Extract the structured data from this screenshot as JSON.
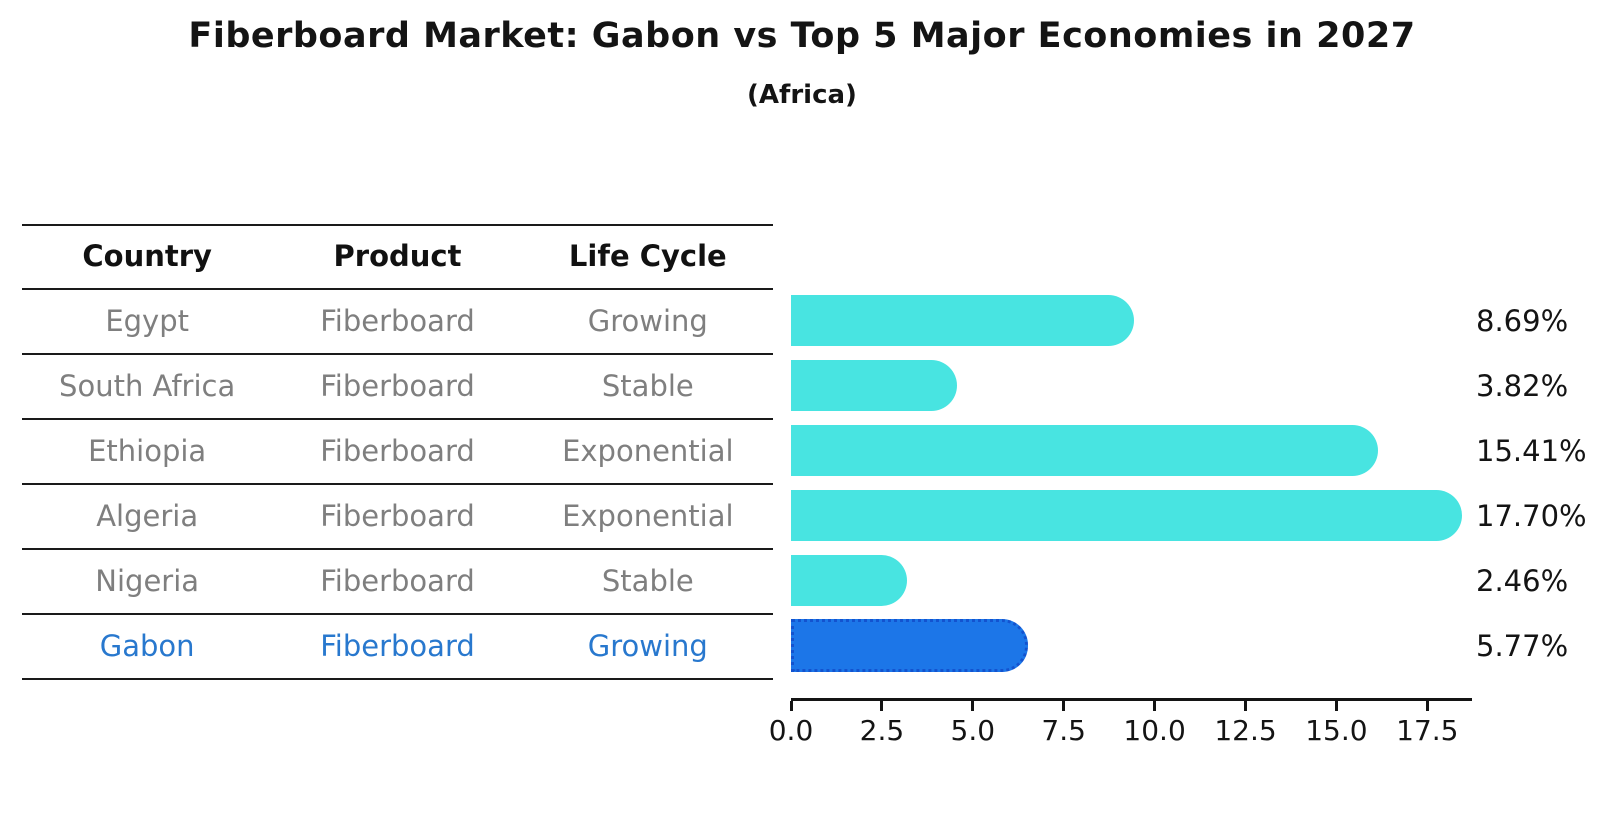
{
  "title": "Fiberboard Market: Gabon vs Top 5 Major Economies in 2027",
  "subtitle": "(Africa)",
  "table": {
    "headers": [
      "Country",
      "Product",
      "Life Cycle"
    ],
    "rows": [
      {
        "country": "Egypt",
        "product": "Fiberboard",
        "life_cycle": "Growing",
        "highlight": false
      },
      {
        "country": "South Africa",
        "product": "Fiberboard",
        "life_cycle": "Stable",
        "highlight": false
      },
      {
        "country": "Ethiopia",
        "product": "Fiberboard",
        "life_cycle": "Exponential",
        "highlight": false
      },
      {
        "country": "Algeria",
        "product": "Fiberboard",
        "life_cycle": "Exponential",
        "highlight": false
      },
      {
        "country": "Nigeria",
        "product": "Fiberboard",
        "life_cycle": "Stable",
        "highlight": false
      },
      {
        "country": "Gabon",
        "product": "Fiberboard",
        "life_cycle": "Growing",
        "highlight": true
      }
    ]
  },
  "chart_data": {
    "type": "bar",
    "orientation": "horizontal",
    "title": "Fiberboard Market: Gabon vs Top 5 Major Economies in 2027",
    "subtitle": "(Africa)",
    "categories": [
      "Egypt",
      "South Africa",
      "Ethiopia",
      "Algeria",
      "Nigeria",
      "Gabon"
    ],
    "values": [
      8.69,
      3.82,
      15.41,
      17.7,
      2.46,
      5.77
    ],
    "value_labels": [
      "8.69%",
      "3.82%",
      "15.41%",
      "17.70%",
      "2.46%",
      "5.77%"
    ],
    "highlight_index": 5,
    "xlabel": "",
    "ylabel": "",
    "xlim": [
      0,
      18.7
    ],
    "x_ticks": [
      0.0,
      2.5,
      5.0,
      7.5,
      10.0,
      12.5,
      15.0,
      17.5
    ],
    "x_tick_labels": [
      "0.0",
      "2.5",
      "5.0",
      "7.5",
      "10.0",
      "12.5",
      "15.0",
      "17.5"
    ],
    "grid": false,
    "legend": false,
    "colors": {
      "bar": "#48E4E1",
      "highlight_bar": "#1C76E8",
      "highlight_bar_border": "#1353CF",
      "row_text": "#7f7f7f",
      "highlight_text": "#2878CE",
      "axis_text": "#141414"
    }
  }
}
